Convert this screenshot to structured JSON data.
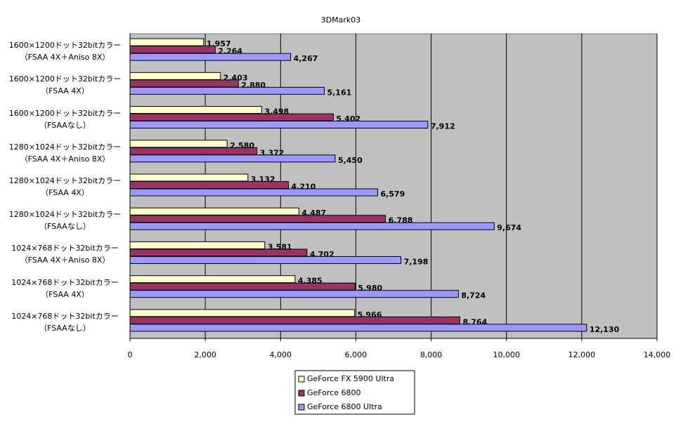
{
  "chart_data": {
    "type": "bar",
    "orientation": "horizontal",
    "title": "3DMark03",
    "categories": [
      "1600×1200ドット32bitカラー\n（FSAA 4X＋Aniso 8X）",
      "1600×1200ドット32bitカラー\n（FSAA 4X）",
      "1600×1200ドット32bitカラー\n（FSAAなし）",
      "1280×1024ドット32bitカラー\n（FSAA 4X＋Aniso 8X）",
      "1280×1024ドット32bitカラー\n（FSAA 4X）",
      "1280×1024ドット32bitカラー\n（FSAAなし）",
      "1024×768ドット32bitカラー\n（FSAA 4X＋Aniso 8X）",
      "1024×768ドット32bitカラー\n（FSAA 4X）",
      "1024×768ドット32bitカラー\n（FSAAなし）"
    ],
    "series": [
      {
        "name": "GeForce FX 5900 Ultra",
        "color": "#ffffcc",
        "values": [
          1957,
          2403,
          3498,
          2580,
          3132,
          4487,
          3581,
          4385,
          5966
        ],
        "value_labels": [
          "1,957",
          "2,403",
          "3,498",
          "2,580",
          "3,132",
          "4,487",
          "3,581",
          "4,385",
          "5,966"
        ]
      },
      {
        "name": "GeForce 6800",
        "color": "#993366",
        "values": [
          2264,
          2880,
          5402,
          3372,
          4210,
          6788,
          4702,
          5980,
          8764
        ],
        "value_labels": [
          "2,264",
          "2,880",
          "5,402",
          "3,372",
          "4,210",
          "6,788",
          "4,702",
          "5,980",
          "8,764"
        ]
      },
      {
        "name": "GeForce 6800 Ultra",
        "color": "#9999ff",
        "values": [
          4267,
          5161,
          7912,
          5450,
          6579,
          9674,
          7198,
          8724,
          12130
        ],
        "value_labels": [
          "4,267",
          "5,161",
          "7,912",
          "5,450",
          "6,579",
          "9,674",
          "7,198",
          "8,724",
          "12,130"
        ]
      }
    ],
    "xlim": [
      0,
      14000
    ],
    "xticks": [
      0,
      {
        "value": 2000,
        "label": "2,000"
      },
      {
        "value": 4000,
        "label": "4,000"
      },
      {
        "value": 6000,
        "label": "6,000"
      },
      {
        "value": 8000,
        "label": "8,000"
      },
      {
        "value": 10000,
        "label": "10,000"
      },
      {
        "value": 12000,
        "label": "12,000"
      },
      {
        "value": 14000,
        "label": "14,000"
      }
    ],
    "grid": true,
    "plot_background": "#c0c0c0",
    "legend": "bottom"
  }
}
